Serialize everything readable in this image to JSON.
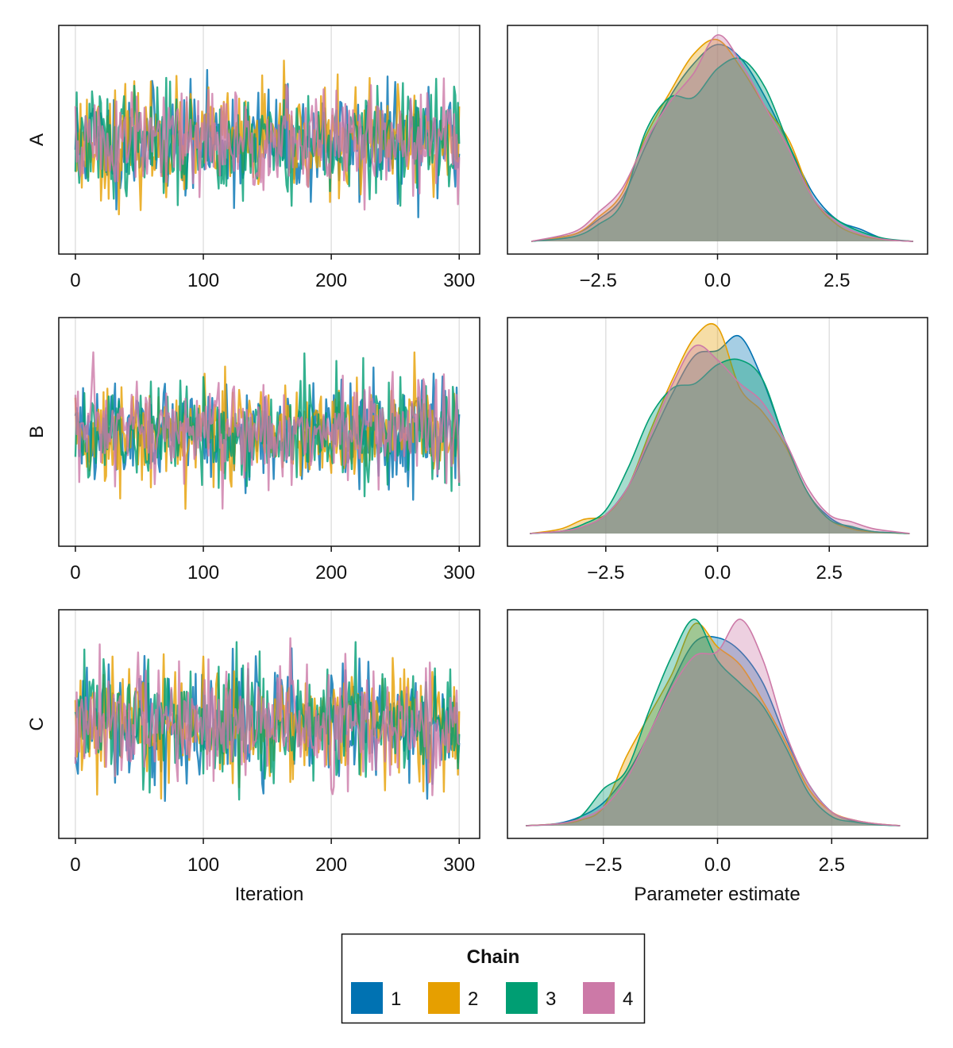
{
  "figure": {
    "xlabel_trace": "Iteration",
    "xlabel_density": "Parameter estimate",
    "legend_title": "Chain",
    "legend_entries": [
      {
        "label": "1",
        "color": "#0072B2"
      },
      {
        "label": "2",
        "color": "#E69F00"
      },
      {
        "label": "3",
        "color": "#009E73"
      },
      {
        "label": "4",
        "color": "#CC79A7"
      }
    ],
    "grid": true,
    "legend_placement": "bottom-center"
  },
  "chart_data": [
    {
      "type": "line",
      "parameter": "A",
      "ylabel": "A",
      "xlabel": "",
      "xlim": [
        -13,
        316
      ],
      "xticks": [
        "0",
        "100",
        "200",
        "300"
      ],
      "xtick_values": [
        0,
        100,
        200,
        300
      ],
      "ylim": [
        -4.2,
        4.4
      ],
      "series": [
        {
          "name": "1",
          "color": "#0072B2",
          "seed": 11,
          "n": 300,
          "mean": 0.0,
          "sd": 1.0
        },
        {
          "name": "2",
          "color": "#E69F00",
          "seed": 23,
          "n": 300,
          "mean": 0.0,
          "sd": 1.0
        },
        {
          "name": "3",
          "color": "#009E73",
          "seed": 37,
          "n": 300,
          "mean": 0.0,
          "sd": 1.0
        },
        {
          "name": "4",
          "color": "#CC79A7",
          "seed": 51,
          "n": 300,
          "mean": 0.0,
          "sd": 1.0
        }
      ]
    },
    {
      "type": "area",
      "parameter": "A",
      "xlabel": "",
      "xlim": [
        -4.4,
        4.4
      ],
      "xticks": [
        "−2.5",
        "0.0",
        "2.5"
      ],
      "xtick_values": [
        -2.5,
        0.0,
        2.5
      ],
      "series": [
        {
          "name": "1",
          "color": "#0072B2",
          "x": [
            -3.9,
            -3.0,
            -2.5,
            -2.0,
            -1.5,
            -1.0,
            -0.5,
            0.0,
            0.5,
            1.0,
            1.5,
            2.0,
            2.5,
            3.0,
            3.5,
            4.1
          ],
          "y": [
            0.0,
            0.015,
            0.045,
            0.09,
            0.2,
            0.3,
            0.37,
            0.41,
            0.38,
            0.3,
            0.2,
            0.1,
            0.045,
            0.025,
            0.005,
            0.0
          ]
        },
        {
          "name": "2",
          "color": "#E69F00",
          "x": [
            -3.9,
            -3.0,
            -2.5,
            -2.0,
            -1.5,
            -1.0,
            -0.5,
            0.0,
            0.5,
            1.0,
            1.5,
            2.0,
            2.5,
            3.0,
            3.5,
            4.1
          ],
          "y": [
            0.0,
            0.015,
            0.05,
            0.1,
            0.22,
            0.31,
            0.39,
            0.42,
            0.36,
            0.28,
            0.21,
            0.09,
            0.035,
            0.012,
            0.004,
            0.0
          ]
        },
        {
          "name": "3",
          "color": "#009E73",
          "x": [
            -3.9,
            -3.0,
            -2.5,
            -2.0,
            -1.5,
            -1.0,
            -0.5,
            0.0,
            0.5,
            1.0,
            1.5,
            2.0,
            2.5,
            3.0,
            3.5,
            4.1
          ],
          "y": [
            0.0,
            0.01,
            0.035,
            0.08,
            0.23,
            0.3,
            0.3,
            0.36,
            0.38,
            0.32,
            0.2,
            0.09,
            0.045,
            0.02,
            0.006,
            0.0
          ]
        },
        {
          "name": "4",
          "color": "#CC79A7",
          "x": [
            -3.9,
            -3.0,
            -2.5,
            -2.0,
            -1.5,
            -1.0,
            -0.5,
            0.0,
            0.5,
            1.0,
            1.5,
            2.0,
            2.5,
            3.0,
            3.5,
            4.1
          ],
          "y": [
            0.0,
            0.02,
            0.06,
            0.11,
            0.21,
            0.29,
            0.35,
            0.43,
            0.37,
            0.28,
            0.19,
            0.09,
            0.04,
            0.015,
            0.004,
            0.0
          ]
        }
      ]
    },
    {
      "type": "line",
      "parameter": "B",
      "ylabel": "B",
      "xlabel": "",
      "xlim": [
        -13,
        316
      ],
      "xticks": [
        "0",
        "100",
        "200",
        "300"
      ],
      "xtick_values": [
        0,
        100,
        200,
        300
      ],
      "ylim": [
        -4.4,
        4.4
      ],
      "series": [
        {
          "name": "1",
          "color": "#0072B2",
          "seed": 61,
          "n": 300,
          "mean": 0.0,
          "sd": 1.0
        },
        {
          "name": "2",
          "color": "#E69F00",
          "seed": 73,
          "n": 300,
          "mean": 0.0,
          "sd": 1.0
        },
        {
          "name": "3",
          "color": "#009E73",
          "seed": 89,
          "n": 300,
          "mean": 0.0,
          "sd": 1.0
        },
        {
          "name": "4",
          "color": "#CC79A7",
          "seed": 97,
          "n": 300,
          "mean": 0.0,
          "sd": 1.0
        }
      ]
    },
    {
      "type": "area",
      "parameter": "B",
      "xlabel": "",
      "xlim": [
        -4.7,
        4.7
      ],
      "xticks": [
        "−2.5",
        "0.0",
        "2.5"
      ],
      "xtick_values": [
        -2.5,
        0.0,
        2.5
      ],
      "series": [
        {
          "name": "1",
          "color": "#0072B2",
          "x": [
            -4.2,
            -3.5,
            -3.0,
            -2.5,
            -2.0,
            -1.5,
            -1.0,
            -0.5,
            0.0,
            0.5,
            1.0,
            1.5,
            2.0,
            2.5,
            3.0,
            3.5,
            4.3
          ],
          "y": [
            0.0,
            0.005,
            0.015,
            0.04,
            0.1,
            0.2,
            0.3,
            0.38,
            0.39,
            0.42,
            0.33,
            0.2,
            0.09,
            0.035,
            0.012,
            0.004,
            0.0
          ]
        },
        {
          "name": "2",
          "color": "#E69F00",
          "x": [
            -4.2,
            -3.5,
            -3.0,
            -2.5,
            -2.0,
            -1.5,
            -1.0,
            -0.5,
            0.0,
            0.5,
            1.0,
            1.5,
            2.0,
            2.5,
            3.0,
            3.5,
            4.3
          ],
          "y": [
            0.0,
            0.01,
            0.03,
            0.04,
            0.1,
            0.22,
            0.33,
            0.42,
            0.44,
            0.31,
            0.26,
            0.19,
            0.09,
            0.03,
            0.01,
            0.003,
            0.0
          ]
        },
        {
          "name": "3",
          "color": "#009E73",
          "x": [
            -4.2,
            -3.5,
            -3.0,
            -2.5,
            -2.0,
            -1.5,
            -1.0,
            -0.5,
            0.0,
            0.5,
            1.0,
            1.5,
            2.0,
            2.5,
            3.0,
            3.5,
            4.3
          ],
          "y": [
            0.0,
            0.005,
            0.02,
            0.05,
            0.14,
            0.25,
            0.31,
            0.32,
            0.36,
            0.37,
            0.33,
            0.2,
            0.09,
            0.03,
            0.015,
            0.004,
            0.0
          ]
        },
        {
          "name": "4",
          "color": "#CC79A7",
          "x": [
            -4.2,
            -3.5,
            -3.0,
            -2.5,
            -2.0,
            -1.5,
            -1.0,
            -0.5,
            0.0,
            0.5,
            1.0,
            1.5,
            2.0,
            2.5,
            3.0,
            3.5,
            4.3
          ],
          "y": [
            0.0,
            0.005,
            0.015,
            0.04,
            0.1,
            0.21,
            0.32,
            0.4,
            0.37,
            0.32,
            0.28,
            0.2,
            0.1,
            0.04,
            0.025,
            0.01,
            0.0
          ]
        }
      ]
    },
    {
      "type": "line",
      "parameter": "C",
      "ylabel": "C",
      "xlabel": "Iteration",
      "xlim": [
        -13,
        316
      ],
      "xticks": [
        "0",
        "100",
        "200",
        "300"
      ],
      "xtick_values": [
        0,
        100,
        200,
        300
      ],
      "ylim": [
        -4.0,
        4.0
      ],
      "series": [
        {
          "name": "1",
          "color": "#0072B2",
          "seed": 103,
          "n": 300,
          "mean": 0.0,
          "sd": 1.0
        },
        {
          "name": "2",
          "color": "#E69F00",
          "seed": 131,
          "n": 300,
          "mean": 0.0,
          "sd": 1.0
        },
        {
          "name": "3",
          "color": "#009E73",
          "seed": 149,
          "n": 300,
          "mean": 0.0,
          "sd": 1.0
        },
        {
          "name": "4",
          "color": "#CC79A7",
          "seed": 167,
          "n": 300,
          "mean": 0.0,
          "sd": 1.0
        }
      ]
    },
    {
      "type": "area",
      "parameter": "C",
      "xlabel": "Parameter estimate",
      "xlim": [
        -4.6,
        4.6
      ],
      "xticks": [
        "−2.5",
        "0.0",
        "2.5"
      ],
      "xtick_values": [
        -2.5,
        0.0,
        2.5
      ],
      "series": [
        {
          "name": "1",
          "color": "#0072B2",
          "x": [
            -4.2,
            -3.5,
            -3.0,
            -2.5,
            -2.0,
            -1.5,
            -1.0,
            -0.5,
            0.0,
            0.5,
            1.0,
            1.5,
            2.0,
            2.5,
            3.0,
            3.5,
            4.0
          ],
          "y": [
            0.0,
            0.005,
            0.02,
            0.05,
            0.11,
            0.2,
            0.31,
            0.4,
            0.41,
            0.38,
            0.31,
            0.19,
            0.09,
            0.03,
            0.01,
            0.003,
            0.0
          ]
        },
        {
          "name": "2",
          "color": "#E69F00",
          "x": [
            -4.2,
            -3.5,
            -3.0,
            -2.5,
            -2.0,
            -1.5,
            -1.0,
            -0.5,
            0.0,
            0.5,
            1.0,
            1.5,
            2.0,
            2.5,
            3.0,
            3.5,
            4.0
          ],
          "y": [
            0.0,
            0.004,
            0.012,
            0.04,
            0.15,
            0.24,
            0.33,
            0.44,
            0.39,
            0.35,
            0.27,
            0.18,
            0.08,
            0.03,
            0.012,
            0.004,
            0.0
          ]
        },
        {
          "name": "3",
          "color": "#009E73",
          "x": [
            -4.2,
            -3.5,
            -3.0,
            -2.5,
            -2.0,
            -1.5,
            -1.0,
            -0.5,
            0.0,
            0.5,
            1.0,
            1.5,
            2.0,
            2.5,
            3.0,
            3.5,
            4.0
          ],
          "y": [
            0.0,
            0.004,
            0.02,
            0.08,
            0.12,
            0.25,
            0.37,
            0.45,
            0.36,
            0.31,
            0.26,
            0.17,
            0.07,
            0.02,
            0.008,
            0.002,
            0.0
          ]
        },
        {
          "name": "4",
          "color": "#CC79A7",
          "x": [
            -4.2,
            -3.5,
            -3.0,
            -2.5,
            -2.0,
            -1.5,
            -1.0,
            -0.5,
            0.0,
            0.5,
            1.0,
            1.5,
            2.0,
            2.5,
            3.0,
            3.5,
            4.0
          ],
          "y": [
            0.0,
            0.004,
            0.015,
            0.04,
            0.1,
            0.2,
            0.3,
            0.37,
            0.38,
            0.45,
            0.36,
            0.2,
            0.09,
            0.03,
            0.012,
            0.004,
            0.0
          ]
        }
      ]
    }
  ]
}
